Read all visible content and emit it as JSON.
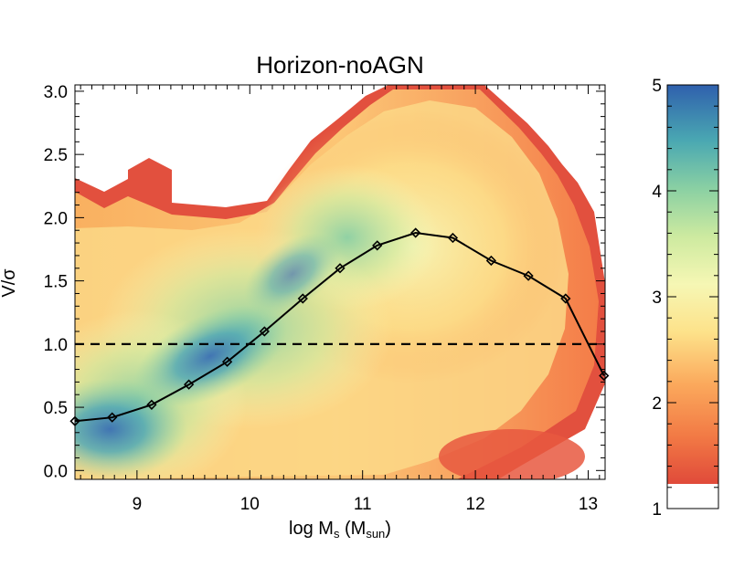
{
  "chart_data": {
    "type": "heatmap",
    "title": "Horizon-noAGN",
    "xlabel": {
      "main": "log M",
      "sub": "s",
      "paren_open": " (M",
      "paren_sub": "sun",
      "paren_close": ")"
    },
    "ylabel": "V/σ",
    "xlim": [
      8.45,
      13.15
    ],
    "ylim": [
      -0.07,
      3.05
    ],
    "x_ticks": [
      9,
      10,
      11,
      12,
      13
    ],
    "y_ticks": [
      "0.0",
      "0.5",
      "1.0",
      "1.5",
      "2.0",
      "2.5",
      "3.0"
    ],
    "series": [
      {
        "type": "line",
        "marker": "diamond",
        "x": [
          8.45,
          8.78,
          9.13,
          9.46,
          9.8,
          10.13,
          10.47,
          10.8,
          11.13,
          11.47,
          11.8,
          12.14,
          12.47,
          12.8,
          13.14
        ],
        "y": [
          0.39,
          0.42,
          0.52,
          0.68,
          0.86,
          1.1,
          1.36,
          1.6,
          1.78,
          1.88,
          1.84,
          1.66,
          1.54,
          1.36,
          0.75
        ]
      }
    ],
    "reference_line": {
      "y": 1.0,
      "style": "dashed"
    },
    "colorbar": {
      "ticks": [
        "1",
        "2",
        "3",
        "4",
        "5"
      ],
      "range": [
        1,
        5
      ]
    },
    "grid": false
  }
}
